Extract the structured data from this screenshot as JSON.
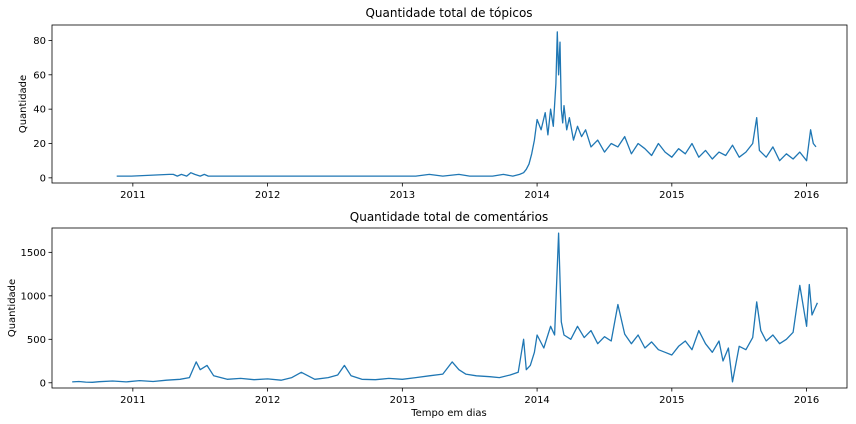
{
  "chart_data": [
    {
      "type": "line",
      "title": "Quantidade total de tópicos",
      "xlabel": "",
      "ylabel": "Quantidade",
      "x_ticks": [
        "2011",
        "2012",
        "2013",
        "2014",
        "2015",
        "2016"
      ],
      "y_ticks": [
        "0",
        "20",
        "40",
        "60",
        "80"
      ],
      "xlim": [
        2010.4,
        2016.3
      ],
      "ylim": [
        -3,
        89
      ],
      "grid": false,
      "color": "#1f77b4",
      "series": [
        {
          "x": [
            2010.88,
            2010.92,
            2010.95,
            2010.99,
            2011.27,
            2011.3,
            2011.33,
            2011.36,
            2011.4,
            2011.43,
            2011.46,
            2011.5,
            2011.53,
            2011.56,
            2011.6,
            2011.72,
            2011.84,
            2011.93,
            2012.05,
            2012.15,
            2012.22,
            2012.3,
            2012.38,
            2012.72,
            2012.85,
            2012.95,
            2013.1,
            2013.2,
            2013.3,
            2013.42,
            2013.5,
            2013.6,
            2013.67,
            2013.75,
            2013.82,
            2013.87,
            2013.9,
            2013.92,
            2013.94,
            2013.96,
            2013.98,
            2014.0,
            2014.03,
            2014.06,
            2014.08,
            2014.1,
            2014.12,
            2014.14,
            2014.15,
            2014.16,
            2014.17,
            2014.18,
            2014.19,
            2014.2,
            2014.22,
            2014.24,
            2014.27,
            2014.3,
            2014.33,
            2014.36,
            2014.4,
            2014.45,
            2014.5,
            2014.55,
            2014.6,
            2014.65,
            2014.7,
            2014.75,
            2014.8,
            2014.85,
            2014.9,
            2014.95,
            2015.0,
            2015.05,
            2015.1,
            2015.15,
            2015.2,
            2015.25,
            2015.3,
            2015.35,
            2015.4,
            2015.45,
            2015.5,
            2015.55,
            2015.6,
            2015.63,
            2015.65,
            2015.7,
            2015.75,
            2015.8,
            2015.85,
            2015.9,
            2015.95,
            2016.0,
            2016.03,
            2016.05,
            2016.07
          ],
          "y": [
            1,
            1,
            1,
            1,
            2,
            2,
            1,
            2,
            1,
            3,
            2,
            1,
            2,
            1,
            1,
            1,
            1,
            1,
            1,
            1,
            1,
            1,
            1,
            1,
            1,
            1,
            1,
            2,
            1,
            2,
            1,
            1,
            1,
            2,
            1,
            2,
            3,
            5,
            8,
            14,
            22,
            34,
            28,
            38,
            25,
            40,
            30,
            55,
            85,
            60,
            79,
            40,
            32,
            42,
            28,
            35,
            22,
            30,
            24,
            28,
            18,
            22,
            15,
            20,
            18,
            24,
            14,
            20,
            17,
            13,
            20,
            15,
            12,
            17,
            14,
            20,
            12,
            16,
            11,
            15,
            13,
            19,
            12,
            15,
            20,
            35,
            16,
            12,
            18,
            10,
            14,
            11,
            15,
            10,
            28,
            20,
            18
          ]
        }
      ]
    },
    {
      "type": "line",
      "title": "Quantidade total de comentários",
      "xlabel": "Tempo em dias",
      "ylabel": "Quantidade",
      "x_ticks": [
        "2011",
        "2012",
        "2013",
        "2014",
        "2015",
        "2016"
      ],
      "y_ticks": [
        "0",
        "500",
        "1000",
        "1500"
      ],
      "xlim": [
        2010.4,
        2016.3
      ],
      "ylim": [
        -60,
        1780
      ],
      "grid": false,
      "color": "#1f77b4",
      "series": [
        {
          "x": [
            2010.55,
            2010.6,
            2010.65,
            2010.7,
            2010.75,
            2010.85,
            2010.95,
            2011.05,
            2011.15,
            2011.25,
            2011.35,
            2011.42,
            2011.47,
            2011.5,
            2011.55,
            2011.6,
            2011.7,
            2011.8,
            2011.9,
            2012.0,
            2012.1,
            2012.18,
            2012.25,
            2012.35,
            2012.45,
            2012.52,
            2012.57,
            2012.62,
            2012.7,
            2012.8,
            2012.9,
            2013.0,
            2013.1,
            2013.2,
            2013.3,
            2013.37,
            2013.42,
            2013.47,
            2013.55,
            2013.65,
            2013.72,
            2013.8,
            2013.86,
            2013.9,
            2013.92,
            2013.95,
            2013.98,
            2014.0,
            2014.05,
            2014.1,
            2014.13,
            2014.16,
            2014.18,
            2014.2,
            2014.25,
            2014.3,
            2014.35,
            2014.4,
            2014.45,
            2014.5,
            2014.55,
            2014.6,
            2014.65,
            2014.7,
            2014.75,
            2014.8,
            2014.85,
            2014.9,
            2014.95,
            2015.0,
            2015.05,
            2015.1,
            2015.15,
            2015.2,
            2015.25,
            2015.3,
            2015.35,
            2015.38,
            2015.42,
            2015.45,
            2015.5,
            2015.55,
            2015.6,
            2015.63,
            2015.66,
            2015.7,
            2015.75,
            2015.8,
            2015.85,
            2015.9,
            2015.95,
            2016.0,
            2016.02,
            2016.04,
            2016.06,
            2016.08
          ],
          "y": [
            10,
            15,
            8,
            5,
            12,
            20,
            10,
            25,
            15,
            30,
            40,
            60,
            240,
            150,
            200,
            80,
            40,
            50,
            35,
            45,
            30,
            60,
            120,
            40,
            60,
            90,
            200,
            80,
            40,
            35,
            50,
            40,
            60,
            80,
            100,
            240,
            150,
            100,
            80,
            70,
            60,
            90,
            120,
            500,
            150,
            200,
            350,
            550,
            400,
            650,
            550,
            1720,
            700,
            550,
            500,
            650,
            520,
            600,
            450,
            530,
            480,
            900,
            560,
            450,
            550,
            400,
            470,
            380,
            350,
            320,
            420,
            480,
            380,
            600,
            450,
            350,
            480,
            250,
            400,
            10,
            420,
            380,
            520,
            930,
            600,
            480,
            550,
            450,
            500,
            580,
            1120,
            650,
            1130,
            780,
            850,
            920
          ]
        }
      ]
    }
  ]
}
